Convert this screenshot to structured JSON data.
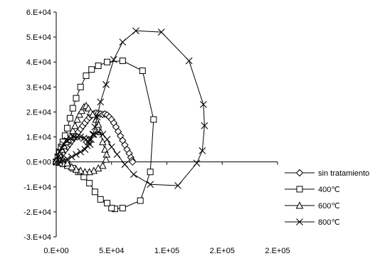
{
  "chart_data": {
    "type": "scatter",
    "title": "",
    "xlabel": "",
    "ylabel": "",
    "xlim": [
      0,
      200000
    ],
    "ylim": [
      -30000,
      60000
    ],
    "x_ticks": [
      0,
      50000,
      100000,
      150000,
      200000
    ],
    "x_tick_labels": [
      "0.E+00",
      "5.E+04",
      "1.E+05",
      "2.E+05",
      "2.E+05"
    ],
    "y_ticks": [
      -30000,
      -20000,
      -10000,
      0,
      10000,
      20000,
      30000,
      40000,
      50000,
      60000
    ],
    "y_tick_labels": [
      "-3.E+04",
      "-2.E+04",
      "-1.E+04",
      "0.E+00",
      "1.E+04",
      "2.E+04",
      "3.E+04",
      "4.E+04",
      "5.E+04",
      "6.E+04"
    ],
    "grid": false,
    "legend_position": "right",
    "series": [
      {
        "name": "sin tratamiento",
        "marker": "diamond",
        "points": [
          [
            0,
            0
          ],
          [
            2000,
            1200
          ],
          [
            4000,
            2400
          ],
          [
            6000,
            3600
          ],
          [
            8000,
            4800
          ],
          [
            10000,
            6000
          ],
          [
            12000,
            7200
          ],
          [
            14000,
            8400
          ],
          [
            16000,
            9600
          ],
          [
            18000,
            10800
          ],
          [
            20000,
            12000
          ],
          [
            22000,
            13200
          ],
          [
            24000,
            14400
          ],
          [
            26000,
            15600
          ],
          [
            28000,
            16800
          ],
          [
            30000,
            17800
          ],
          [
            32000,
            18600
          ],
          [
            34000,
            19300
          ],
          [
            36000,
            19600
          ],
          [
            38000,
            19500
          ],
          [
            40000,
            19200
          ],
          [
            42000,
            19000
          ],
          [
            44000,
            19200
          ],
          [
            46000,
            18800
          ],
          [
            48000,
            18000
          ],
          [
            50000,
            17000
          ],
          [
            52000,
            15600
          ],
          [
            54000,
            14000
          ],
          [
            56000,
            12200
          ],
          [
            58000,
            10400
          ],
          [
            60000,
            8600
          ],
          [
            62000,
            6800
          ],
          [
            64000,
            5000
          ],
          [
            66000,
            3400
          ],
          [
            67500,
            1800
          ],
          [
            68500,
            600
          ],
          [
            69000,
            0
          ]
        ]
      },
      {
        "name": "400℃",
        "marker": "square",
        "points": [
          [
            0,
            0
          ],
          [
            1500,
            2000
          ],
          [
            3000,
            4000
          ],
          [
            4500,
            6000
          ],
          [
            6000,
            8000
          ],
          [
            8000,
            10500
          ],
          [
            10000,
            13500
          ],
          [
            12500,
            17500
          ],
          [
            15000,
            21500
          ],
          [
            18000,
            25500
          ],
          [
            22000,
            30000
          ],
          [
            27000,
            34500
          ],
          [
            32000,
            37000
          ],
          [
            38000,
            38500
          ],
          [
            46000,
            40000
          ],
          [
            60000,
            40500
          ],
          [
            78000,
            36500
          ],
          [
            88000,
            17000
          ],
          [
            85000,
            -4000
          ],
          [
            76000,
            -15500
          ],
          [
            60000,
            -18500
          ],
          [
            53000,
            -18800
          ],
          [
            50000,
            -18500
          ],
          [
            46000,
            -16500
          ],
          [
            40000,
            -15000
          ],
          [
            35000,
            -12000
          ],
          [
            30000,
            -8500
          ],
          [
            25000,
            -6000
          ],
          [
            20000,
            -4000
          ],
          [
            15000,
            -2500
          ],
          [
            10000,
            -1500
          ],
          [
            6000,
            -800
          ],
          [
            3000,
            -300
          ],
          [
            0,
            0
          ]
        ]
      },
      {
        "name": "600℃",
        "marker": "triangle",
        "points": [
          [
            0,
            0
          ],
          [
            1500,
            1500
          ],
          [
            3000,
            3000
          ],
          [
            5000,
            5000
          ],
          [
            7000,
            6500
          ],
          [
            9000,
            8000
          ],
          [
            11000,
            9000
          ],
          [
            13000,
            10000
          ],
          [
            15000,
            12500
          ],
          [
            17000,
            14500
          ],
          [
            19000,
            17000
          ],
          [
            21000,
            19000
          ],
          [
            23000,
            20500
          ],
          [
            25000,
            22000
          ],
          [
            27000,
            22500
          ],
          [
            29000,
            21500
          ],
          [
            31000,
            20000
          ],
          [
            33000,
            19000
          ],
          [
            36000,
            17000
          ],
          [
            38000,
            15000
          ],
          [
            40000,
            12000
          ],
          [
            42000,
            8000
          ],
          [
            44000,
            5000
          ],
          [
            45500,
            3000
          ],
          [
            45000,
            1000
          ],
          [
            42000,
            -1500
          ],
          [
            38000,
            -2500
          ],
          [
            34000,
            -3500
          ],
          [
            30000,
            -4000
          ],
          [
            26000,
            -4000
          ],
          [
            22000,
            -3500
          ],
          [
            18000,
            -3000
          ],
          [
            14000,
            -2000
          ],
          [
            10000,
            -500
          ],
          [
            6000,
            800
          ],
          [
            3000,
            1200
          ],
          [
            0,
            500
          ]
        ]
      },
      {
        "name": "800℃",
        "marker": "x",
        "points": [
          [
            0,
            0
          ],
          [
            1500,
            2000
          ],
          [
            3000,
            4000
          ],
          [
            5000,
            5500
          ],
          [
            7000,
            7000
          ],
          [
            10000,
            8500
          ],
          [
            13000,
            9500
          ],
          [
            16000,
            10000
          ],
          [
            19000,
            10000
          ],
          [
            22000,
            10000
          ],
          [
            25000,
            9500
          ],
          [
            27000,
            9000
          ],
          [
            29000,
            8000
          ],
          [
            30500,
            7000
          ],
          [
            31500,
            9000
          ],
          [
            33000,
            11000
          ],
          [
            35000,
            14000
          ],
          [
            37000,
            18000
          ],
          [
            40000,
            24000
          ],
          [
            45000,
            31000
          ],
          [
            52000,
            41000
          ],
          [
            60000,
            48000
          ],
          [
            72000,
            52500
          ],
          [
            95000,
            52000
          ],
          [
            120000,
            40500
          ],
          [
            133000,
            23000
          ],
          [
            134000,
            14500
          ],
          [
            132000,
            4500
          ],
          [
            127000,
            -500
          ],
          [
            110000,
            -9500
          ],
          [
            85000,
            -9000
          ],
          [
            70000,
            -5000
          ],
          [
            62000,
            -1000
          ],
          [
            55000,
            3000
          ],
          [
            50000,
            6000
          ],
          [
            46000,
            9000
          ],
          [
            42000,
            11000
          ],
          [
            38000,
            12000
          ],
          [
            34000,
            11000
          ],
          [
            30000,
            9000
          ],
          [
            28000,
            6500
          ],
          [
            26000,
            5000
          ],
          [
            22000,
            4000
          ],
          [
            18000,
            3000
          ],
          [
            14000,
            2000
          ],
          [
            10000,
            1200
          ],
          [
            6000,
            600
          ],
          [
            3000,
            300
          ],
          [
            0,
            0
          ]
        ]
      }
    ]
  }
}
